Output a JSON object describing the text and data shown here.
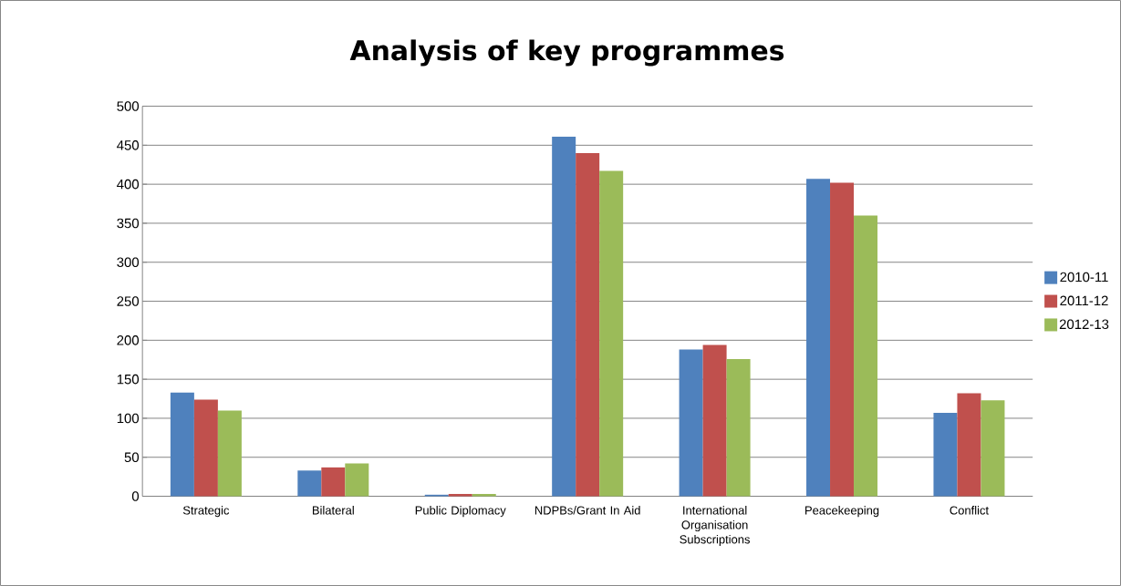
{
  "chart_data": {
    "type": "bar",
    "title": "Analysis of key programmes",
    "categories": [
      "Strategic",
      "Bilateral",
      "Public Diplomacy",
      "NDPBs/Grant In Aid",
      "International Organisation Subscriptions",
      "Peacekeeping",
      "Conflict"
    ],
    "series": [
      {
        "name": "2010-11",
        "color": "#4f81bd",
        "values": [
          133,
          33,
          2,
          461,
          188,
          407,
          107
        ]
      },
      {
        "name": "2011-12",
        "color": "#c0504d",
        "values": [
          124,
          37,
          3,
          440,
          194,
          402,
          132
        ]
      },
      {
        "name": "2012-13",
        "color": "#9bbb59",
        "values": [
          110,
          42,
          3,
          417,
          176,
          360,
          123
        ]
      }
    ],
    "ylim": [
      0,
      500
    ],
    "yticks": [
      0,
      50,
      100,
      150,
      200,
      250,
      300,
      350,
      400,
      450,
      500
    ],
    "grid": "y",
    "legend": "right"
  }
}
